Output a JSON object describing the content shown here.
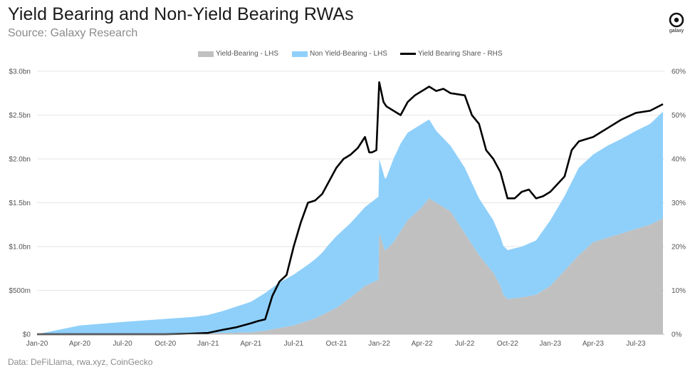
{
  "header": {
    "title": "Yield Bearing and Non-Yield Bearing RWAs",
    "subtitle": "Source: Galaxy Research",
    "logo_text": "galaxy"
  },
  "footer": {
    "source": "Data: DeFiLlama, rwa.xyz, CoinGecko"
  },
  "colors": {
    "yield": "#c0c0c0",
    "nonyield": "#8fd0fa",
    "share": "#000000",
    "grid": "#e6e6e6"
  },
  "chart_data": {
    "type": "area",
    "title": "Yield Bearing and Non-Yield Bearing RWAs",
    "left_axis": {
      "range": [
        0,
        3.0
      ],
      "ticks": [
        0,
        0.5,
        1.0,
        1.5,
        2.0,
        2.5,
        3.0
      ],
      "tick_labels": [
        "$0",
        "$500m",
        "$1.0bn",
        "$1.5bn",
        "$2.0bn",
        "$2.5bn",
        "$3.0bn"
      ]
    },
    "right_axis": {
      "range": [
        0,
        60
      ],
      "ticks": [
        0,
        10,
        20,
        30,
        40,
        50,
        60
      ],
      "tick_labels": [
        "0%",
        "10%",
        "20%",
        "30%",
        "40%",
        "50%",
        "60%"
      ]
    },
    "x_axis": {
      "range": [
        0,
        44
      ],
      "ticks": [
        0,
        3,
        6,
        9,
        12,
        15,
        18,
        21,
        24,
        27,
        30,
        33,
        36,
        39,
        42
      ],
      "tick_labels": [
        "Jan-20",
        "Apr-20",
        "Jul-20",
        "Oct-20",
        "Jan-21",
        "Apr-21",
        "Jul-21",
        "Oct-21",
        "Jan-22",
        "Apr-22",
        "Jul-22",
        "Oct-22",
        "Jan-23",
        "Apr-23",
        "Jul-23"
      ]
    },
    "legend": [
      "Yield-Bearing - LHS",
      "Non Yield-Bearing - LHS",
      "Yield Bearing Share - RHS"
    ],
    "legend_position": "top",
    "series": [
      {
        "name": "Yield-Bearing - LHS",
        "axis": "left",
        "stack": true,
        "x": [
          0,
          6,
          12,
          15,
          16,
          18,
          19.5,
          21,
          22,
          23,
          23.95,
          24,
          24.4,
          25,
          26,
          27,
          27.5,
          28,
          29,
          30,
          31,
          32,
          32.5,
          32.7,
          33,
          34,
          35,
          36,
          38,
          39,
          40,
          41,
          42,
          43,
          43.9
        ],
        "values": [
          0,
          0,
          0.01,
          0.02,
          0.04,
          0.1,
          0.18,
          0.3,
          0.42,
          0.55,
          0.62,
          1.15,
          0.95,
          1.05,
          1.3,
          1.45,
          1.55,
          1.5,
          1.4,
          1.15,
          0.9,
          0.7,
          0.55,
          0.45,
          0.4,
          0.42,
          0.45,
          0.55,
          0.9,
          1.05,
          1.1,
          1.15,
          1.2,
          1.25,
          1.32
        ]
      },
      {
        "name": "Non Yield-Bearing - LHS",
        "axis": "left",
        "stack": true,
        "x": [
          0,
          0.6,
          3,
          6,
          9,
          11,
          12,
          13,
          14,
          15,
          16,
          17,
          18,
          19,
          20,
          20.5,
          21,
          22,
          23,
          23.95,
          24,
          24.5,
          25,
          25.5,
          26,
          27,
          27.5,
          28,
          29,
          30,
          31,
          32,
          32.5,
          33,
          34,
          35,
          36,
          37,
          38,
          39,
          40,
          41,
          42,
          43,
          43.9
        ],
        "values": [
          0,
          0.02,
          0.1,
          0.14,
          0.17,
          0.19,
          0.21,
          0.25,
          0.3,
          0.35,
          0.43,
          0.52,
          0.58,
          0.64,
          0.71,
          0.77,
          0.82,
          0.85,
          0.9,
          0.95,
          0.85,
          0.82,
          0.95,
          1.0,
          1.0,
          0.95,
          0.9,
          0.82,
          0.75,
          0.75,
          0.65,
          0.6,
          0.56,
          0.56,
          0.58,
          0.62,
          0.75,
          0.85,
          1.0,
          1.0,
          1.05,
          1.08,
          1.12,
          1.15,
          1.22
        ]
      },
      {
        "name": "Yield Bearing Share - RHS",
        "axis": "right",
        "stack": false,
        "x": [
          0,
          9,
          10.5,
          12,
          13,
          14,
          15,
          15.5,
          16,
          16.5,
          17,
          17.5,
          18,
          18.5,
          19,
          19.5,
          20,
          20.5,
          21,
          21.5,
          22,
          22.5,
          23,
          23.3,
          23.5,
          23.8,
          24,
          24.3,
          24.5,
          25,
          25.5,
          26,
          26.5,
          27,
          27.5,
          28,
          28.5,
          29,
          30,
          30.5,
          31,
          31.5,
          32,
          32.5,
          33,
          33.5,
          34,
          34.5,
          35,
          35.5,
          36,
          37,
          37.5,
          38,
          39,
          40,
          41,
          42,
          43,
          43.9
        ],
        "values": [
          0,
          0,
          0.1,
          0.3,
          1.0,
          1.6,
          2.5,
          3.0,
          3.4,
          8.7,
          12.0,
          13.5,
          20.0,
          25.5,
          30.0,
          30.5,
          32.0,
          35.0,
          38.0,
          40.0,
          41.0,
          42.5,
          45.0,
          41.5,
          41.5,
          42.0,
          57.5,
          53.0,
          52.0,
          51.0,
          50.0,
          53.0,
          54.5,
          55.5,
          56.5,
          55.5,
          56.0,
          55.0,
          54.5,
          50.0,
          48.0,
          42.0,
          40.0,
          37.0,
          31.0,
          31.0,
          32.5,
          33.0,
          31.0,
          31.5,
          32.5,
          36.0,
          42.0,
          44.0,
          45.0,
          47.0,
          49.0,
          50.5,
          51.0,
          52.5
        ]
      }
    ]
  }
}
